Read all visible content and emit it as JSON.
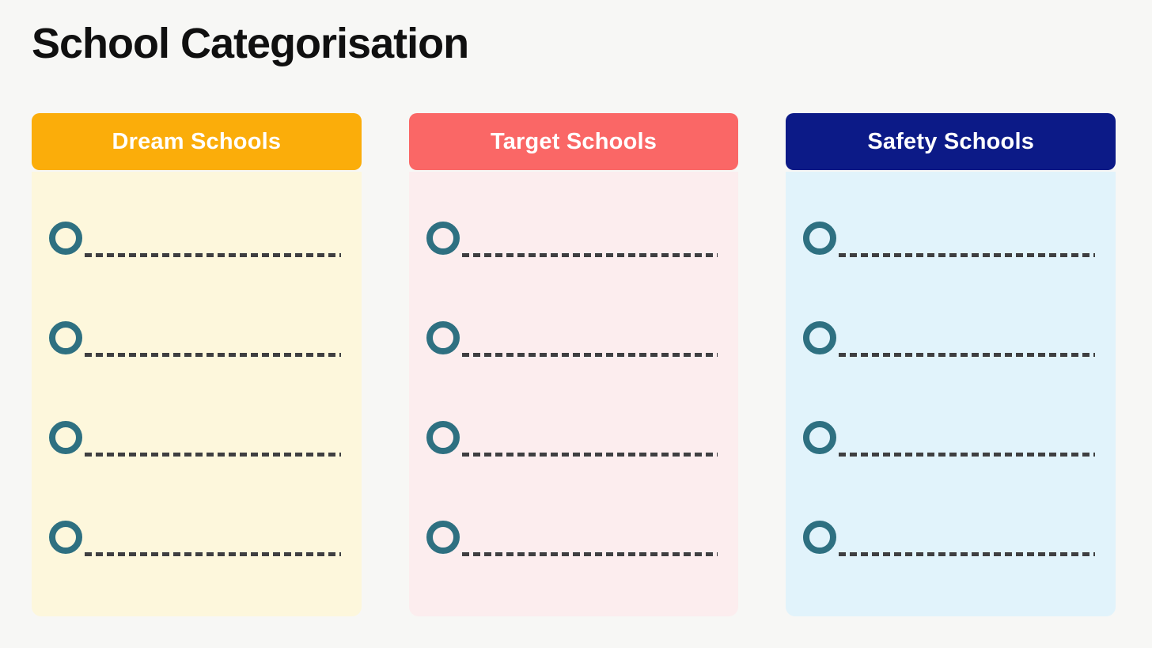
{
  "page": {
    "title": "School Categorisation",
    "background_color": "#F7F7F5",
    "title_color": "#101010"
  },
  "style": {
    "bullet_color": "#2E7081",
    "dash_color": "#3F3F41",
    "header_text_color": "#FFFFFF"
  },
  "columns": [
    {
      "label": "Dream Schools",
      "header_color": "#FBAD0A",
      "body_color": "#FDF7DC",
      "items": [
        {
          "value": ""
        },
        {
          "value": ""
        },
        {
          "value": ""
        },
        {
          "value": ""
        }
      ]
    },
    {
      "label": "Target Schools",
      "header_color": "#FA6766",
      "body_color": "#FCEDEE",
      "items": [
        {
          "value": ""
        },
        {
          "value": ""
        },
        {
          "value": ""
        },
        {
          "value": ""
        }
      ]
    },
    {
      "label": "Safety Schools",
      "header_color": "#0C1A87",
      "body_color": "#E1F3FB",
      "items": [
        {
          "value": ""
        },
        {
          "value": ""
        },
        {
          "value": ""
        },
        {
          "value": ""
        }
      ]
    }
  ]
}
